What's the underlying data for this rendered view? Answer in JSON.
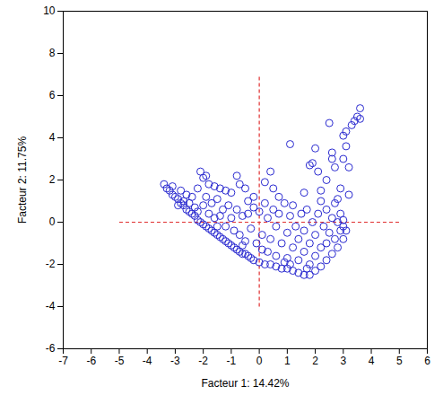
{
  "chart_data": {
    "type": "scatter",
    "x_label": "Facteur 1: 14.42%",
    "y_label": "Facteur 2: 11.75%",
    "xlim": [
      -7,
      6
    ],
    "xticks": [
      -7,
      -6,
      -5,
      -4,
      -3,
      -2,
      -1,
      0,
      1,
      2,
      3,
      4,
      5,
      6
    ],
    "ylim": [
      -6,
      10
    ],
    "yticks": [
      -6,
      -4,
      -2,
      0,
      2,
      4,
      6,
      8,
      10
    ],
    "color": "#2a2ad0",
    "marker": "circle",
    "reference_lines": [
      {
        "x1": -5,
        "y1": 0,
        "x2": 5,
        "y2": 0,
        "color": "#e03030",
        "line_style": "dashed"
      },
      {
        "x1": 0,
        "y1": -4,
        "x2": 0,
        "y2": 7,
        "color": "#e03030",
        "line_style": "dashed"
      }
    ],
    "x": [
      -3.4,
      -3.3,
      -3.2,
      -3.1,
      -3.0,
      -2.9,
      -2.8,
      -2.7,
      -2.6,
      -2.5,
      -2.4,
      -2.3,
      -2.2,
      -2.1,
      -2.0,
      -1.9,
      -1.8,
      -1.7,
      -1.6,
      -1.5,
      -1.4,
      -1.3,
      -1.2,
      -1.1,
      -1.0,
      -0.9,
      -0.8,
      -0.7,
      -0.6,
      -0.5,
      -0.4,
      -0.3,
      -0.2,
      0.0,
      0.2,
      0.4,
      0.6,
      0.8,
      1.0,
      1.2,
      1.4,
      1.6,
      1.8,
      2.0,
      2.2,
      2.4,
      2.6,
      2.8,
      3.0,
      3.1,
      -3.1,
      -2.8,
      -2.6,
      -2.4,
      -2.2,
      -2.1,
      -2.0,
      -1.9,
      -1.8,
      -1.6,
      -1.4,
      -1.2,
      -1.0,
      -0.8,
      -0.7,
      -0.5,
      -0.4,
      -0.2,
      0.2,
      0.4,
      0.5,
      0.7,
      -2.9,
      -2.7,
      -2.5,
      -2.3,
      -2.2,
      -2.0,
      -1.9,
      -1.8,
      -1.7,
      -1.6,
      -1.5,
      -1.4,
      -1.3,
      -1.2,
      -1.1,
      -1.0,
      -0.9,
      -0.8,
      -0.7,
      -0.6,
      -0.5,
      -0.4,
      -0.3,
      -0.2,
      -0.1,
      0.0,
      0.1,
      0.2,
      0.3,
      0.3,
      0.4,
      0.5,
      0.6,
      0.6,
      0.7,
      0.8,
      0.9,
      1.0,
      1.0,
      1.1,
      1.2,
      1.2,
      1.3,
      1.4,
      1.4,
      1.5,
      1.6,
      1.6,
      1.7,
      1.8,
      1.8,
      1.9,
      2.0,
      2.0,
      2.1,
      2.2,
      2.2,
      2.3,
      2.4,
      2.4,
      2.5,
      2.6,
      2.7,
      2.8,
      2.9,
      3.0,
      0.9,
      -0.6,
      -1.5,
      0.1,
      1.1,
      1.7,
      1.1,
      1.6,
      1.8,
      1.9,
      2.0,
      2.1,
      2.2,
      2.4,
      2.5,
      2.6,
      2.6,
      2.7,
      2.8,
      2.7,
      2.9,
      3.0,
      3.0,
      3.1,
      3.1,
      3.2,
      3.2,
      3.3,
      3.4,
      3.5,
      3.6,
      3.6,
      2.9,
      3.0
    ],
    "values": [
      1.8,
      1.6,
      1.5,
      1.3,
      1.2,
      1.1,
      0.9,
      0.8,
      0.6,
      0.5,
      0.4,
      0.3,
      0.1,
      0.0,
      -0.1,
      -0.2,
      -0.3,
      -0.4,
      -0.5,
      -0.6,
      -0.7,
      -0.8,
      -0.9,
      -1.0,
      -1.1,
      -1.2,
      -1.3,
      -1.4,
      -1.5,
      -1.5,
      -1.6,
      -1.7,
      -1.8,
      -1.9,
      -2.0,
      -2.0,
      -2.1,
      -2.2,
      -2.2,
      -2.3,
      -2.4,
      -2.5,
      -2.5,
      -2.3,
      -2.1,
      -1.8,
      -1.5,
      -1.2,
      -0.8,
      -0.4,
      1.7,
      1.5,
      1.3,
      1.2,
      1.6,
      2.4,
      2.1,
      2.2,
      1.8,
      1.7,
      1.6,
      1.5,
      1.4,
      2.2,
      1.8,
      1.6,
      1.0,
      1.2,
      1.9,
      2.4,
      1.6,
      1.2,
      0.8,
      1.0,
      0.9,
      0.7,
      0.5,
      0.8,
      1.2,
      0.4,
      0.9,
      0.2,
      1.1,
      0.3,
      0.6,
      -0.2,
      0.8,
      0.2,
      -0.4,
      0.6,
      -0.6,
      0.3,
      -0.9,
      0.4,
      -0.3,
      0.7,
      -1.0,
      0.5,
      -0.6,
      0.9,
      -1.4,
      0.2,
      -0.8,
      0.6,
      -1.6,
      -0.2,
      0.4,
      -1.0,
      0.9,
      -1.7,
      -0.5,
      0.3,
      -1.2,
      0.8,
      -0.2,
      -1.8,
      -0.8,
      0.4,
      -1.4,
      -0.4,
      0.6,
      -2.0,
      -1.0,
      0.0,
      -1.6,
      -0.6,
      0.4,
      -1.2,
      1.0,
      -0.2,
      -1.0,
      0.6,
      -0.5,
      0.2,
      -0.8,
      0.0,
      -0.4,
      -0.2,
      -1.9,
      -1.1,
      -0.2,
      -1.3,
      -2.0,
      -2.2,
      3.7,
      1.4,
      2.7,
      2.8,
      3.5,
      2.4,
      1.5,
      2.0,
      4.7,
      3.0,
      3.3,
      2.6,
      1.1,
      0.9,
      1.6,
      3.0,
      4.1,
      4.3,
      3.6,
      1.3,
      2.6,
      4.6,
      4.8,
      5.0,
      5.4,
      4.9,
      0.4,
      0.1
    ]
  }
}
